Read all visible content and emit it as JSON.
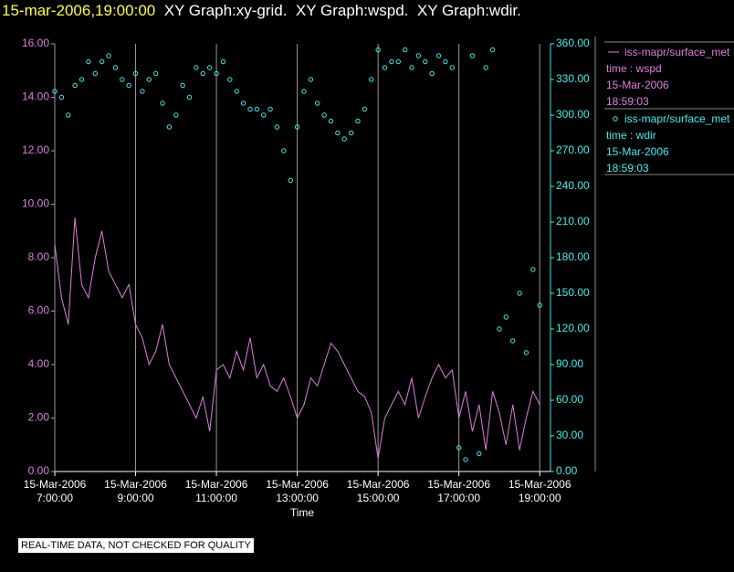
{
  "chart_data": {
    "type": "line+scatter",
    "header_time": "15-mar-2006,19:00:00",
    "title": "XY Graph:xy-grid.  XY Graph:wspd.  XY Graph:wdir.",
    "xlabel": "Time",
    "note": "REAL-TIME DATA, NOT CHECKED FOR QUALITY",
    "x": [
      "2006-03-15 07:00",
      "2006-03-15 07:10",
      "2006-03-15 07:20",
      "2006-03-15 07:30",
      "2006-03-15 07:40",
      "2006-03-15 07:50",
      "2006-03-15 08:00",
      "2006-03-15 08:10",
      "2006-03-15 08:20",
      "2006-03-15 08:30",
      "2006-03-15 08:40",
      "2006-03-15 08:50",
      "2006-03-15 09:00",
      "2006-03-15 09:10",
      "2006-03-15 09:20",
      "2006-03-15 09:30",
      "2006-03-15 09:40",
      "2006-03-15 09:50",
      "2006-03-15 10:00",
      "2006-03-15 10:10",
      "2006-03-15 10:20",
      "2006-03-15 10:30",
      "2006-03-15 10:40",
      "2006-03-15 10:50",
      "2006-03-15 11:00",
      "2006-03-15 11:10",
      "2006-03-15 11:20",
      "2006-03-15 11:30",
      "2006-03-15 11:40",
      "2006-03-15 11:50",
      "2006-03-15 12:00",
      "2006-03-15 12:10",
      "2006-03-15 12:20",
      "2006-03-15 12:30",
      "2006-03-15 12:40",
      "2006-03-15 12:50",
      "2006-03-15 13:00",
      "2006-03-15 13:10",
      "2006-03-15 13:20",
      "2006-03-15 13:30",
      "2006-03-15 13:40",
      "2006-03-15 13:50",
      "2006-03-15 14:00",
      "2006-03-15 14:10",
      "2006-03-15 14:20",
      "2006-03-15 14:30",
      "2006-03-15 14:40",
      "2006-03-15 14:50",
      "2006-03-15 15:00",
      "2006-03-15 15:10",
      "2006-03-15 15:20",
      "2006-03-15 15:30",
      "2006-03-15 15:40",
      "2006-03-15 15:50",
      "2006-03-15 16:00",
      "2006-03-15 16:10",
      "2006-03-15 16:20",
      "2006-03-15 16:30",
      "2006-03-15 16:40",
      "2006-03-15 16:50",
      "2006-03-15 17:00",
      "2006-03-15 17:10",
      "2006-03-15 17:20",
      "2006-03-15 17:30",
      "2006-03-15 17:40",
      "2006-03-15 17:50",
      "2006-03-15 18:00",
      "2006-03-15 18:10",
      "2006-03-15 18:20",
      "2006-03-15 18:30",
      "2006-03-15 18:40",
      "2006-03-15 18:50",
      "2006-03-15 19:00"
    ],
    "series": [
      {
        "name": "iss-mapr/surface_met",
        "legend_lines": [
          "time : wspd",
          "15-Mar-2006",
          "18:59:03"
        ],
        "kind": "line",
        "color": "#e07ee0",
        "values": [
          8.5,
          6.5,
          5.5,
          9.5,
          7.0,
          6.5,
          8.0,
          9.0,
          7.5,
          7.0,
          6.5,
          7.0,
          5.5,
          5.0,
          4.0,
          4.5,
          5.5,
          4.0,
          3.5,
          3.0,
          2.5,
          2.0,
          2.8,
          1.5,
          3.8,
          4.0,
          3.5,
          4.5,
          3.8,
          5.0,
          3.5,
          4.0,
          3.2,
          3.0,
          3.5,
          2.8,
          2.0,
          2.5,
          3.5,
          3.2,
          4.0,
          4.8,
          4.5,
          4.0,
          3.5,
          3.0,
          2.8,
          2.2,
          0.5,
          2.0,
          2.5,
          3.0,
          2.5,
          3.5,
          2.0,
          2.8,
          3.5,
          4.0,
          3.5,
          3.8,
          2.0,
          3.0,
          1.5,
          2.5,
          0.8,
          3.0,
          2.2,
          1.0,
          2.5,
          0.8,
          2.0,
          3.0,
          2.5
        ]
      },
      {
        "name": "iss-mapr/surface_met",
        "legend_lines": [
          "time : wdir",
          "15-Mar-2006",
          "18:59:03"
        ],
        "kind": "scatter",
        "axis": "y2",
        "color": "#40f0f0",
        "values": [
          320,
          315,
          300,
          325,
          330,
          345,
          335,
          345,
          350,
          340,
          330,
          325,
          335,
          320,
          330,
          335,
          310,
          290,
          300,
          325,
          315,
          340,
          335,
          340,
          335,
          345,
          330,
          320,
          310,
          305,
          305,
          300,
          305,
          290,
          270,
          245,
          290,
          320,
          330,
          310,
          300,
          295,
          285,
          280,
          285,
          295,
          305,
          330,
          355,
          340,
          345,
          345,
          355,
          340,
          350,
          345,
          335,
          350,
          345,
          340,
          20,
          10,
          350,
          15,
          340,
          355,
          120,
          130,
          110,
          150,
          100,
          170,
          140
        ]
      }
    ],
    "xlim": [
      "2006-03-15 07:00",
      "2006-03-15 19:16"
    ],
    "xticks": [
      {
        "value": "2006-03-15 07:00",
        "label": "15-Mar-2006\n7:00:00"
      },
      {
        "value": "2006-03-15 09:00",
        "label": "15-Mar-2006\n9:00:00"
      },
      {
        "value": "2006-03-15 11:00",
        "label": "15-Mar-2006\n11:00:00"
      },
      {
        "value": "2006-03-15 13:00",
        "label": "15-Mar-2006\n13:00:00"
      },
      {
        "value": "2006-03-15 15:00",
        "label": "15-Mar-2006\n15:00:00"
      },
      {
        "value": "2006-03-15 17:00",
        "label": "15-Mar-2006\n17:00:00"
      },
      {
        "value": "2006-03-15 19:00",
        "label": "15-Mar-2006\n19:00:00"
      }
    ],
    "ylim": [
      0,
      16
    ],
    "yticks": [
      {
        "value": 0,
        "label": "0.00"
      },
      {
        "value": 2,
        "label": "2.00"
      },
      {
        "value": 4,
        "label": "4.00"
      },
      {
        "value": 6,
        "label": "6.00"
      },
      {
        "value": 8,
        "label": "8.00"
      },
      {
        "value": 10,
        "label": "10.00"
      },
      {
        "value": 12,
        "label": "12.00"
      },
      {
        "value": 14,
        "label": "14.00"
      },
      {
        "value": 16,
        "label": "16.00"
      }
    ],
    "y2lim": [
      0,
      360
    ],
    "y2ticks": [
      {
        "value": 0,
        "label": "0.00"
      },
      {
        "value": 30,
        "label": "30.00"
      },
      {
        "value": 60,
        "label": "60.00"
      },
      {
        "value": 90,
        "label": "90.00"
      },
      {
        "value": 120,
        "label": "120.00"
      },
      {
        "value": 150,
        "label": "150.00"
      },
      {
        "value": 180,
        "label": "180.00"
      },
      {
        "value": 210,
        "label": "210.00"
      },
      {
        "value": 240,
        "label": "240.00"
      },
      {
        "value": 270,
        "label": "270.00"
      },
      {
        "value": 300,
        "label": "300.00"
      },
      {
        "value": 330,
        "label": "330.00"
      },
      {
        "value": 360,
        "label": "360.00"
      }
    ],
    "grid": "x"
  }
}
